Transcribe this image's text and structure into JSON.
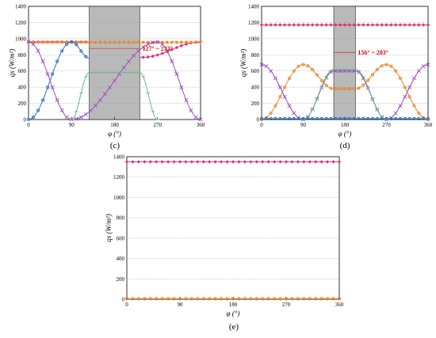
{
  "figure": {
    "panels": [
      "(c)",
      "(d)",
      "(e)"
    ],
    "xlabel": "φ (°)",
    "ylabel": "qs (W/m²)"
  },
  "colors": {
    "pink": "#e0307a",
    "orange": "#e8862a",
    "purple": "#9b4fc0",
    "green": "#5cc080",
    "blue": "#2f6fb8",
    "shade": "#b9b9b9"
  },
  "chart_data": [
    {
      "panel": "(c)",
      "type": "line",
      "xlabel": "φ (°)",
      "ylabel": "qs (W/m²)",
      "xlim": [
        0,
        360
      ],
      "ylim": [
        0,
        1400
      ],
      "xticks": [
        0,
        90,
        180,
        270,
        360
      ],
      "yticks": [
        0,
        200,
        400,
        600,
        800,
        1000,
        1200,
        1400
      ],
      "grid": "horizontal",
      "shaded_band": [
        127,
        233
      ],
      "annotation": "127° ~ 233°",
      "series": [
        {
          "color": "pink",
          "marker": "diamond",
          "x": [
            0,
            120,
            240,
            360
          ],
          "y": [
            960,
            960,
            770,
            960
          ],
          "gap": [
            127,
            233
          ]
        },
        {
          "color": "orange",
          "marker": "triangle",
          "x": [
            0,
            360
          ],
          "y": [
            950,
            950
          ]
        },
        {
          "color": "blue",
          "marker": "circle",
          "x": [
            0,
            127
          ],
          "y": [
            0,
            760
          ],
          "peak": {
            "x": 90,
            "y": 960
          }
        },
        {
          "color": "purple",
          "marker": "cross",
          "x": [
            0,
            90,
            270,
            360
          ],
          "y": [
            960,
            0,
            960,
            0
          ]
        },
        {
          "color": "green",
          "marker": "dash",
          "x": [
            90,
            127,
            233,
            270
          ],
          "y": [
            0,
            580,
            580,
            0
          ]
        }
      ]
    },
    {
      "panel": "(d)",
      "type": "line",
      "xlabel": "φ (°)",
      "ylabel": "qs (W/m²)",
      "xlim": [
        0,
        360
      ],
      "ylim": [
        0,
        1400
      ],
      "xticks": [
        0,
        90,
        180,
        270,
        360
      ],
      "yticks": [
        0,
        200,
        400,
        600,
        800,
        1000,
        1200,
        1400
      ],
      "grid": "horizontal",
      "shaded_band": [
        156,
        203
      ],
      "annotation": "156° ~ 203°",
      "series": [
        {
          "color": "pink",
          "marker": "diamond",
          "x": [
            0,
            360
          ],
          "y": [
            1170,
            1170
          ]
        },
        {
          "color": "orange",
          "marker": "circle",
          "x": [
            0,
            90,
            156,
            203,
            270,
            360
          ],
          "y": [
            0,
            680,
            380,
            380,
            680,
            0
          ]
        },
        {
          "color": "purple",
          "marker": "cross",
          "x": [
            0,
            90,
            156,
            203,
            270,
            360
          ],
          "y": [
            680,
            0,
            600,
            600,
            0,
            680
          ]
        },
        {
          "color": "green",
          "marker": "dash",
          "x": [
            90,
            156,
            203,
            270
          ],
          "y": [
            0,
            620,
            620,
            0
          ]
        },
        {
          "color": "blue",
          "marker": "circle",
          "x": [
            0,
            360
          ],
          "y": [
            10,
            10
          ]
        }
      ]
    },
    {
      "panel": "(e)",
      "type": "line",
      "xlabel": "φ (°)",
      "ylabel": "qs (W/m²)",
      "xlim": [
        0,
        360
      ],
      "ylim": [
        0,
        1400
      ],
      "xticks": [
        0,
        90,
        180,
        270,
        360
      ],
      "yticks": [
        0,
        200,
        400,
        600,
        800,
        1000,
        1200,
        1400
      ],
      "grid": "horizontal",
      "series": [
        {
          "color": "pink",
          "marker": "diamond",
          "x": [
            0,
            360
          ],
          "y": [
            1350,
            1350
          ]
        },
        {
          "color": "orange",
          "marker": "circle",
          "x": [
            0,
            360
          ],
          "y": [
            5,
            5
          ]
        }
      ]
    }
  ]
}
